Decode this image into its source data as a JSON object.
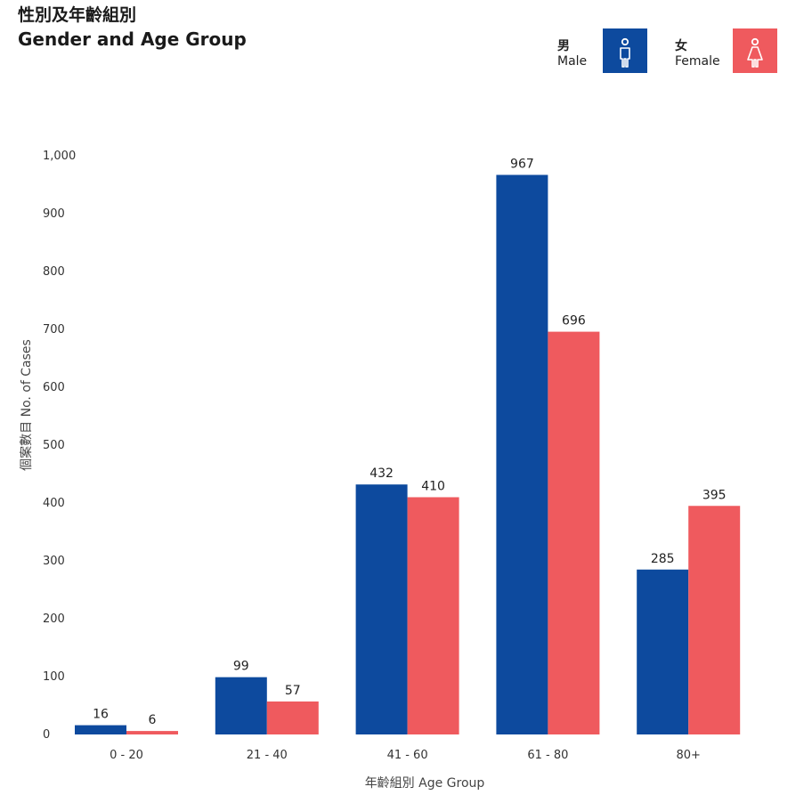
{
  "title": {
    "zh": "性別及年齡組別",
    "en": "Gender and Age Group"
  },
  "legend": {
    "male": {
      "zh": "男",
      "en": "Male",
      "icon": "male-person-icon"
    },
    "female": {
      "zh": "女",
      "en": "Female",
      "icon": "female-person-icon"
    }
  },
  "colors": {
    "male": "#0d4a9e",
    "female": "#ef5a5e"
  },
  "chart_data": {
    "type": "bar",
    "title": "Gender and Age Group",
    "xlabel": "年齡組別 Age Group",
    "ylabel": "個案數目 No. of Cases",
    "ylim": [
      0,
      1000
    ],
    "yticks": [
      "0",
      "100",
      "200",
      "300",
      "400",
      "500",
      "600",
      "700",
      "800",
      "900",
      "1,000"
    ],
    "categories": [
      "0 - 20",
      "21 - 40",
      "41 - 60",
      "61 - 80",
      "80+"
    ],
    "series": [
      {
        "name": "Male",
        "values": [
          16,
          99,
          432,
          967,
          285
        ]
      },
      {
        "name": "Female",
        "values": [
          6,
          57,
          410,
          696,
          395
        ]
      }
    ],
    "grid": false,
    "legend_position": "top-right"
  }
}
